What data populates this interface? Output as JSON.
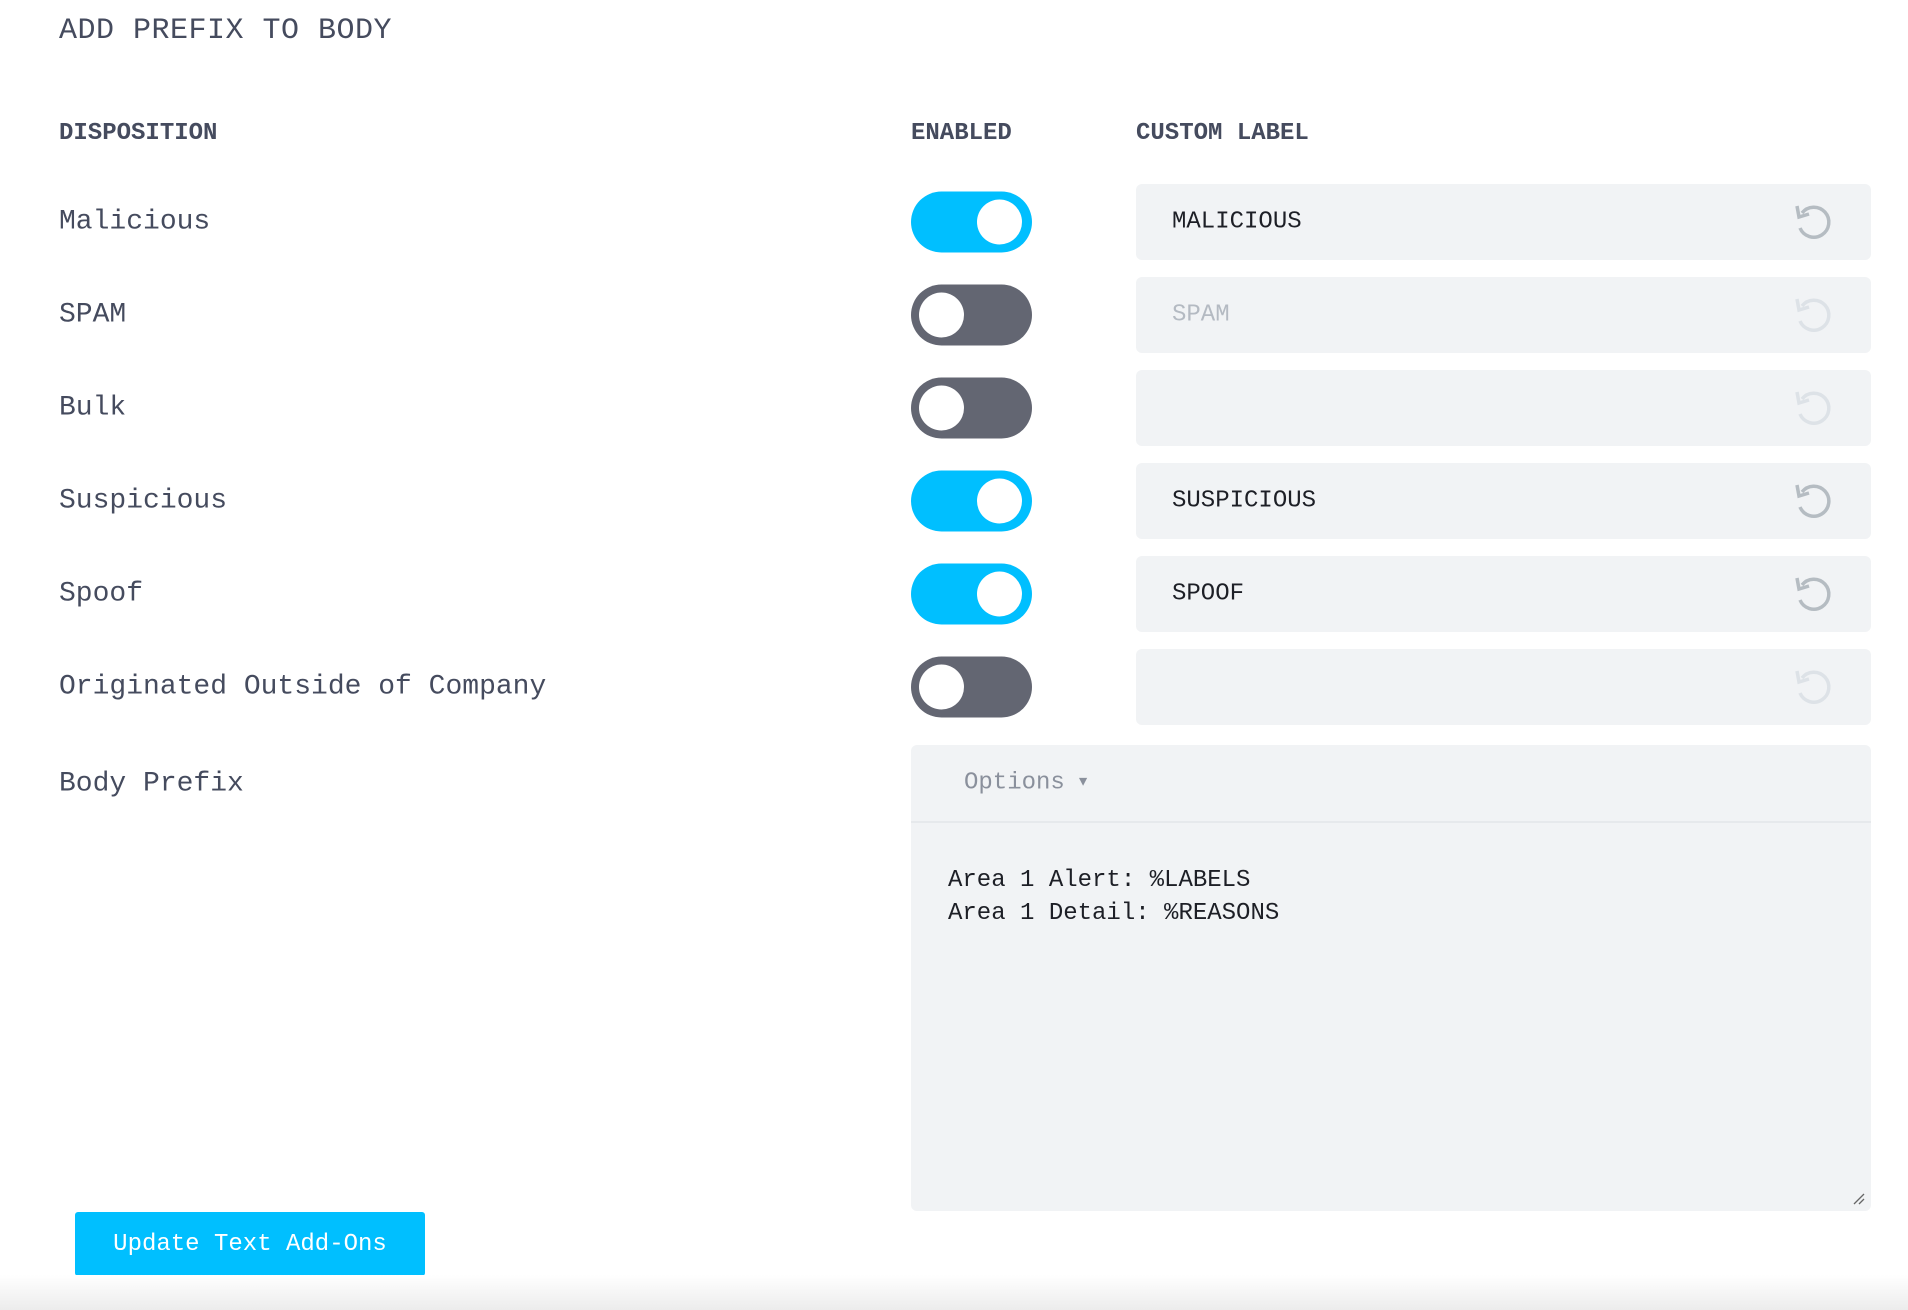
{
  "section_title": "ADD PREFIX TO BODY",
  "headers": {
    "disposition": "DISPOSITION",
    "enabled": "ENABLED",
    "custom_label": "CUSTOM LABEL"
  },
  "accent_color": "#00bfff",
  "rows": [
    {
      "label": "Malicious",
      "enabled": true,
      "custom_label": "MALICIOUS"
    },
    {
      "label": "SPAM",
      "enabled": false,
      "custom_label": "SPAM"
    },
    {
      "label": "Bulk",
      "enabled": false,
      "custom_label": ""
    },
    {
      "label": "Suspicious",
      "enabled": true,
      "custom_label": "SUSPICIOUS"
    },
    {
      "label": "Spoof",
      "enabled": true,
      "custom_label": "SPOOF"
    },
    {
      "label": "Originated Outside of Company",
      "enabled": false,
      "custom_label": ""
    }
  ],
  "body_prefix": {
    "label": "Body Prefix",
    "options_label": "Options",
    "lines": [
      "Area 1 Alert: %LABELS",
      "Area 1 Detail: %REASONS"
    ]
  },
  "submit_label": "Update Text Add-Ons"
}
